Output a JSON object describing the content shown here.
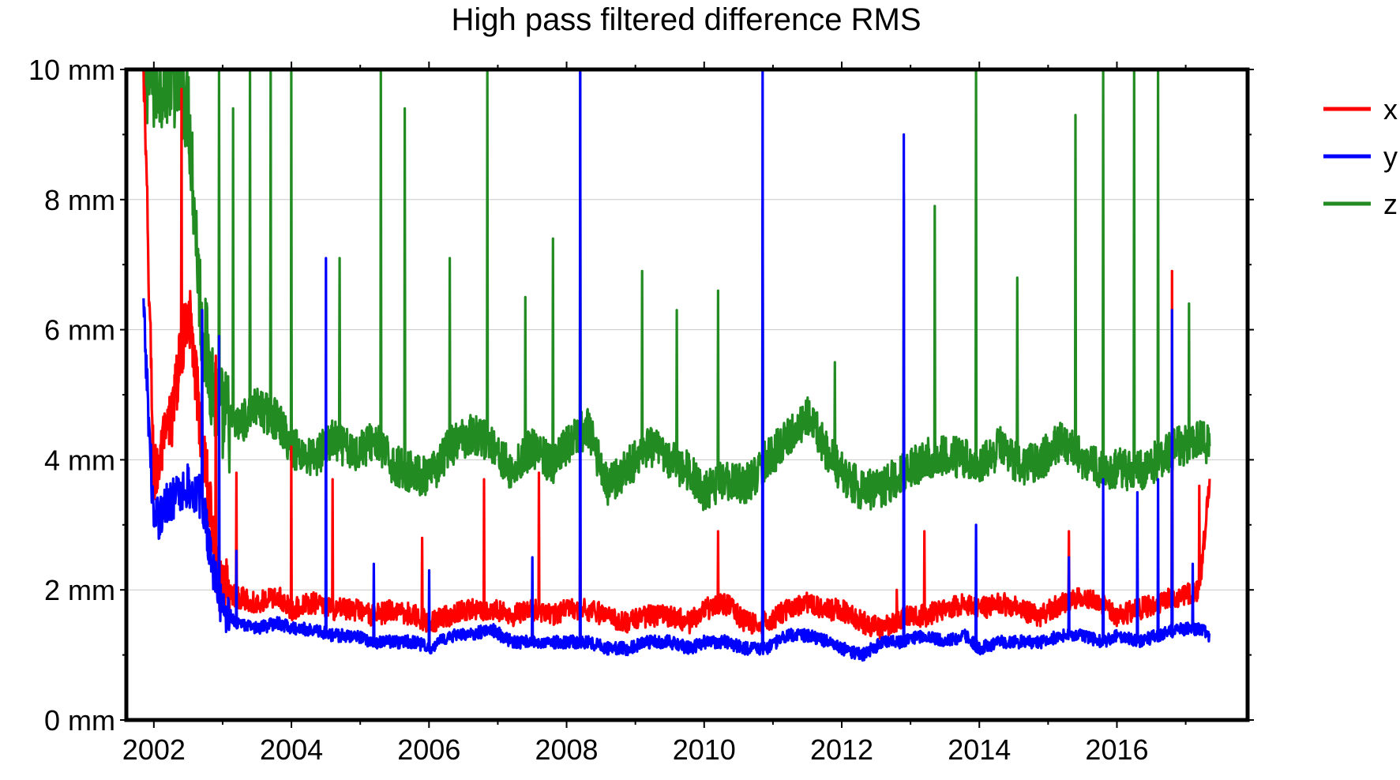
{
  "chart_data": {
    "type": "line",
    "title": "High pass filtered difference RMS",
    "xlabel": "",
    "ylabel": "",
    "xlim": [
      2001.6,
      2017.9
    ],
    "ylim": [
      0,
      10
    ],
    "x_ticks": [
      "2002",
      "2004",
      "2006",
      "2008",
      "2010",
      "2012",
      "2014",
      "2016"
    ],
    "x_tick_values": [
      2002,
      2004,
      2006,
      2008,
      2010,
      2012,
      2014,
      2016
    ],
    "y_ticks": [
      "0 mm",
      "2 mm",
      "4 mm",
      "6 mm",
      "8 mm",
      "10 mm"
    ],
    "y_tick_values": [
      0,
      2,
      4,
      6,
      8,
      10
    ],
    "grid": "horizontal",
    "legend_position": "top-right-outside",
    "series": [
      {
        "name": "x",
        "color": "#ff0000",
        "x": [
          2001.85,
          2002.0,
          2002.25,
          2002.5,
          2002.7,
          2002.95,
          2003.2,
          2003.5,
          2003.8,
          2004.0,
          2004.3,
          2004.6,
          2004.9,
          2005.2,
          2005.5,
          2005.8,
          2006.0,
          2006.3,
          2006.6,
          2006.9,
          2007.2,
          2007.5,
          2007.8,
          2008.0,
          2008.3,
          2008.6,
          2008.9,
          2009.2,
          2009.5,
          2009.8,
          2010.0,
          2010.3,
          2010.6,
          2010.9,
          2011.2,
          2011.5,
          2011.8,
          2012.0,
          2012.3,
          2012.6,
          2012.9,
          2013.2,
          2013.5,
          2013.8,
          2014.0,
          2014.3,
          2014.6,
          2014.9,
          2015.2,
          2015.5,
          2015.8,
          2016.0,
          2016.3,
          2016.6,
          2016.9,
          2017.2,
          2017.35
        ],
        "y": [
          10.0,
          3.7,
          4.6,
          6.4,
          4.3,
          2.1,
          1.9,
          1.8,
          1.9,
          1.7,
          1.8,
          1.7,
          1.7,
          1.6,
          1.7,
          1.6,
          1.5,
          1.6,
          1.7,
          1.7,
          1.6,
          1.7,
          1.6,
          1.7,
          1.7,
          1.6,
          1.5,
          1.6,
          1.6,
          1.5,
          1.7,
          1.8,
          1.5,
          1.5,
          1.7,
          1.8,
          1.7,
          1.7,
          1.5,
          1.4,
          1.6,
          1.6,
          1.7,
          1.8,
          1.7,
          1.8,
          1.7,
          1.6,
          1.8,
          1.9,
          1.8,
          1.6,
          1.7,
          1.8,
          1.9,
          2.0,
          3.7
        ],
        "spikes": [
          [
            2002.4,
            9.7
          ],
          [
            2002.9,
            5.6
          ],
          [
            2003.2,
            3.8
          ],
          [
            2004.0,
            4.2
          ],
          [
            2004.6,
            3.7
          ],
          [
            2005.9,
            2.8
          ],
          [
            2006.8,
            3.7
          ],
          [
            2007.6,
            3.8
          ],
          [
            2008.2,
            3.5
          ],
          [
            2010.2,
            2.9
          ],
          [
            2012.8,
            2.0
          ],
          [
            2013.2,
            2.9
          ],
          [
            2015.3,
            2.9
          ],
          [
            2016.8,
            6.9
          ],
          [
            2017.2,
            3.6
          ]
        ]
      },
      {
        "name": "y",
        "color": "#0000ff",
        "x": [
          2001.85,
          2002.0,
          2002.25,
          2002.5,
          2002.7,
          2002.95,
          2003.2,
          2003.5,
          2003.8,
          2004.0,
          2004.3,
          2004.6,
          2004.9,
          2005.2,
          2005.5,
          2005.8,
          2006.0,
          2006.3,
          2006.6,
          2006.9,
          2007.2,
          2007.5,
          2007.8,
          2008.0,
          2008.3,
          2008.6,
          2008.9,
          2009.2,
          2009.5,
          2009.8,
          2010.0,
          2010.3,
          2010.6,
          2010.9,
          2011.2,
          2011.5,
          2011.8,
          2012.0,
          2012.3,
          2012.6,
          2012.9,
          2013.2,
          2013.5,
          2013.8,
          2014.0,
          2014.3,
          2014.6,
          2014.9,
          2015.2,
          2015.5,
          2015.8,
          2016.0,
          2016.3,
          2016.6,
          2016.9,
          2017.2,
          2017.35
        ],
        "y": [
          6.3,
          3.0,
          3.4,
          3.6,
          3.4,
          1.8,
          1.5,
          1.4,
          1.5,
          1.4,
          1.4,
          1.3,
          1.3,
          1.2,
          1.2,
          1.2,
          1.1,
          1.3,
          1.3,
          1.4,
          1.2,
          1.2,
          1.2,
          1.2,
          1.2,
          1.1,
          1.1,
          1.2,
          1.2,
          1.1,
          1.2,
          1.2,
          1.1,
          1.1,
          1.3,
          1.3,
          1.2,
          1.1,
          1.0,
          1.2,
          1.2,
          1.3,
          1.2,
          1.3,
          1.1,
          1.2,
          1.2,
          1.2,
          1.3,
          1.3,
          1.2,
          1.3,
          1.2,
          1.3,
          1.4,
          1.4,
          1.3
        ],
        "spikes": [
          [
            2002.7,
            6.3
          ],
          [
            2002.95,
            5.9
          ],
          [
            2003.2,
            2.6
          ],
          [
            2004.5,
            7.1
          ],
          [
            2005.2,
            2.4
          ],
          [
            2006.0,
            2.3
          ],
          [
            2007.5,
            2.5
          ],
          [
            2008.2,
            10.0
          ],
          [
            2010.85,
            10.0
          ],
          [
            2012.9,
            9.0
          ],
          [
            2013.95,
            3.0
          ],
          [
            2015.3,
            2.5
          ],
          [
            2015.8,
            3.7
          ],
          [
            2016.3,
            3.5
          ],
          [
            2016.6,
            3.7
          ],
          [
            2016.8,
            6.3
          ],
          [
            2017.1,
            2.4
          ]
        ]
      },
      {
        "name": "z",
        "color": "#228b22",
        "x": [
          2001.85,
          2002.0,
          2002.25,
          2002.5,
          2002.7,
          2002.95,
          2003.2,
          2003.5,
          2003.8,
          2004.0,
          2004.3,
          2004.6,
          2004.9,
          2005.2,
          2005.5,
          2005.8,
          2006.0,
          2006.3,
          2006.6,
          2006.9,
          2007.2,
          2007.5,
          2007.8,
          2008.0,
          2008.3,
          2008.6,
          2008.9,
          2009.2,
          2009.5,
          2009.8,
          2010.0,
          2010.3,
          2010.6,
          2010.9,
          2011.2,
          2011.5,
          2011.8,
          2012.0,
          2012.3,
          2012.6,
          2012.9,
          2013.2,
          2013.5,
          2013.8,
          2014.0,
          2014.3,
          2014.6,
          2014.9,
          2015.2,
          2015.5,
          2015.8,
          2016.0,
          2016.3,
          2016.6,
          2016.9,
          2017.2,
          2017.35
        ],
        "y": [
          10.0,
          9.8,
          10.0,
          9.5,
          6.0,
          4.7,
          4.5,
          4.8,
          4.6,
          4.2,
          4.0,
          4.3,
          4.1,
          4.3,
          3.9,
          3.8,
          3.7,
          4.2,
          4.4,
          4.3,
          3.8,
          4.2,
          3.9,
          4.2,
          4.5,
          3.6,
          3.9,
          4.2,
          4.0,
          3.8,
          3.5,
          3.7,
          3.6,
          4.0,
          4.3,
          4.7,
          4.1,
          3.8,
          3.5,
          3.6,
          3.8,
          4.0,
          4.1,
          4.0,
          3.9,
          4.2,
          3.9,
          4.0,
          4.3,
          4.0,
          3.8,
          3.9,
          3.8,
          4.0,
          4.2,
          4.3,
          4.2
        ],
        "spikes": [
          [
            2002.95,
            10.0
          ],
          [
            2003.15,
            9.4
          ],
          [
            2003.4,
            10.0
          ],
          [
            2003.7,
            10.0
          ],
          [
            2004.0,
            10.0
          ],
          [
            2004.7,
            7.1
          ],
          [
            2005.3,
            10.0
          ],
          [
            2005.65,
            9.4
          ],
          [
            2006.3,
            7.1
          ],
          [
            2006.85,
            10.0
          ],
          [
            2007.4,
            6.5
          ],
          [
            2007.8,
            7.4
          ],
          [
            2008.2,
            10.0
          ],
          [
            2009.1,
            6.9
          ],
          [
            2009.6,
            6.3
          ],
          [
            2010.2,
            6.6
          ],
          [
            2010.85,
            7.9
          ],
          [
            2011.9,
            5.5
          ],
          [
            2012.9,
            8.1
          ],
          [
            2013.35,
            7.9
          ],
          [
            2013.95,
            10.0
          ],
          [
            2014.55,
            6.8
          ],
          [
            2015.4,
            9.3
          ],
          [
            2015.8,
            10.0
          ],
          [
            2016.25,
            10.0
          ],
          [
            2016.6,
            10.0
          ],
          [
            2017.05,
            6.4
          ]
        ]
      }
    ]
  }
}
